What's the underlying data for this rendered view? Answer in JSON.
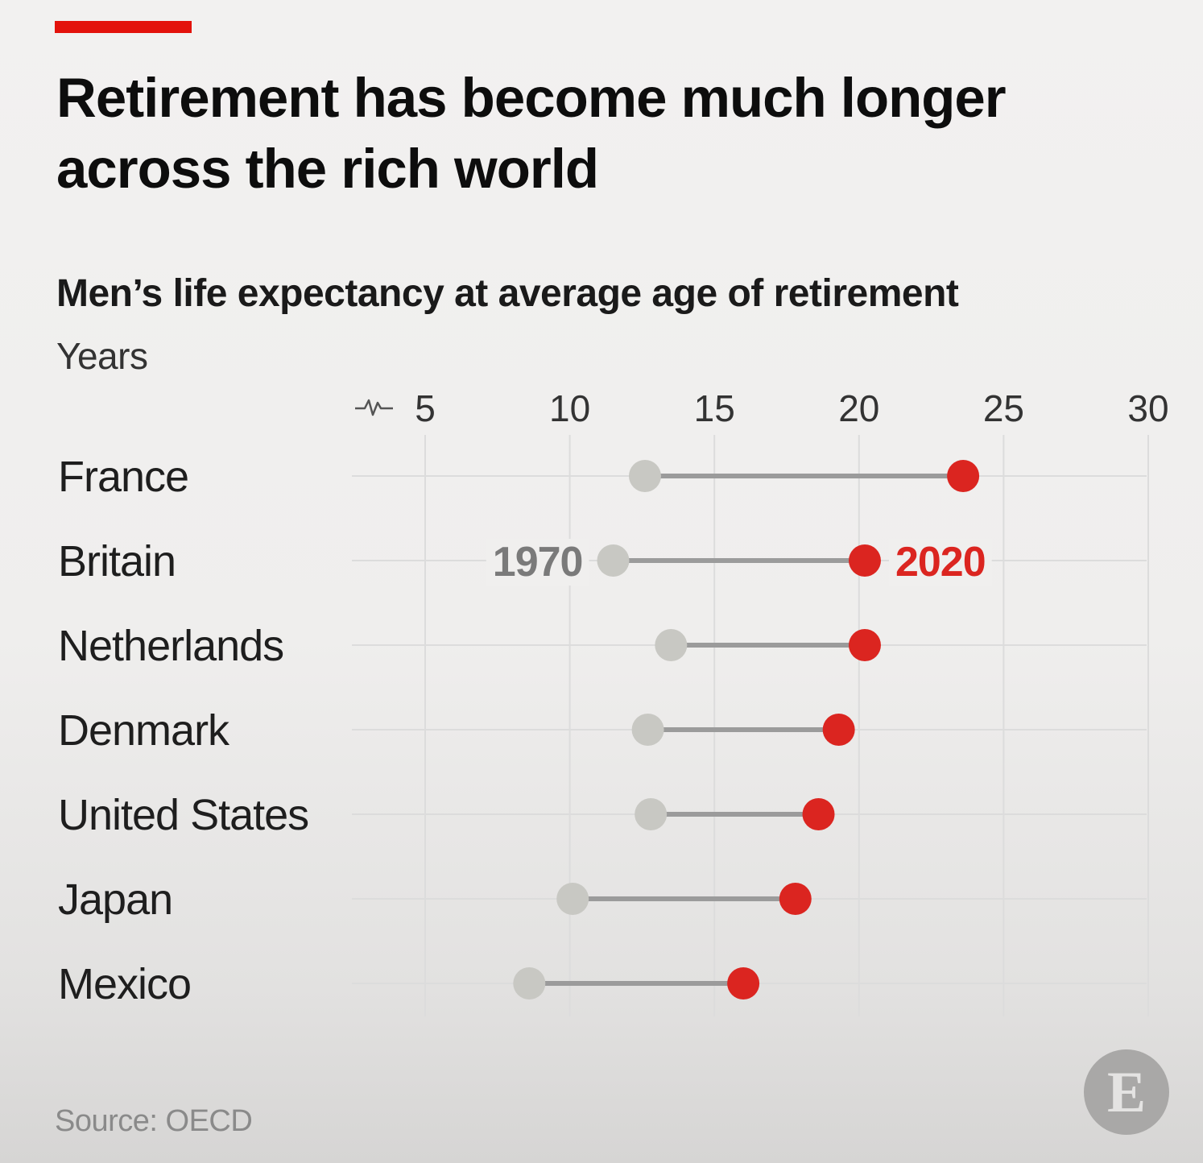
{
  "header": {
    "title": "Retirement has become much longer across the rich world",
    "subtitle": "Men’s life expectancy at average age of retirement",
    "units": "Years"
  },
  "footer": {
    "source": "Source: OECD",
    "logo_letter": "E",
    "logo_icon": "economist-logo-icon"
  },
  "colors": {
    "accent": "#e3120b",
    "year_1970": "#c8c8c3",
    "year_2020": "#db2520",
    "connector": "#9b9b9b",
    "grid": "#dcdcdc"
  },
  "chart_data": {
    "type": "dumbbell",
    "xlim": [
      5,
      30
    ],
    "x_ticks": [
      5,
      10,
      15,
      20,
      25,
      30
    ],
    "axis_break_icon": "axis-break-icon",
    "grid": true,
    "categories": [
      "France",
      "Britain",
      "Netherlands",
      "Denmark",
      "United States",
      "Japan",
      "Mexico"
    ],
    "series": [
      {
        "name": "1970",
        "values": [
          12.6,
          11.5,
          13.5,
          12.7,
          12.8,
          10.1,
          8.6
        ]
      },
      {
        "name": "2020",
        "values": [
          23.6,
          20.2,
          20.2,
          19.3,
          18.6,
          17.8,
          16.0
        ]
      }
    ],
    "annotations": [
      {
        "text": "1970",
        "category": "Britain",
        "series": "1970"
      },
      {
        "text": "2020",
        "category": "Britain",
        "series": "2020"
      }
    ]
  }
}
